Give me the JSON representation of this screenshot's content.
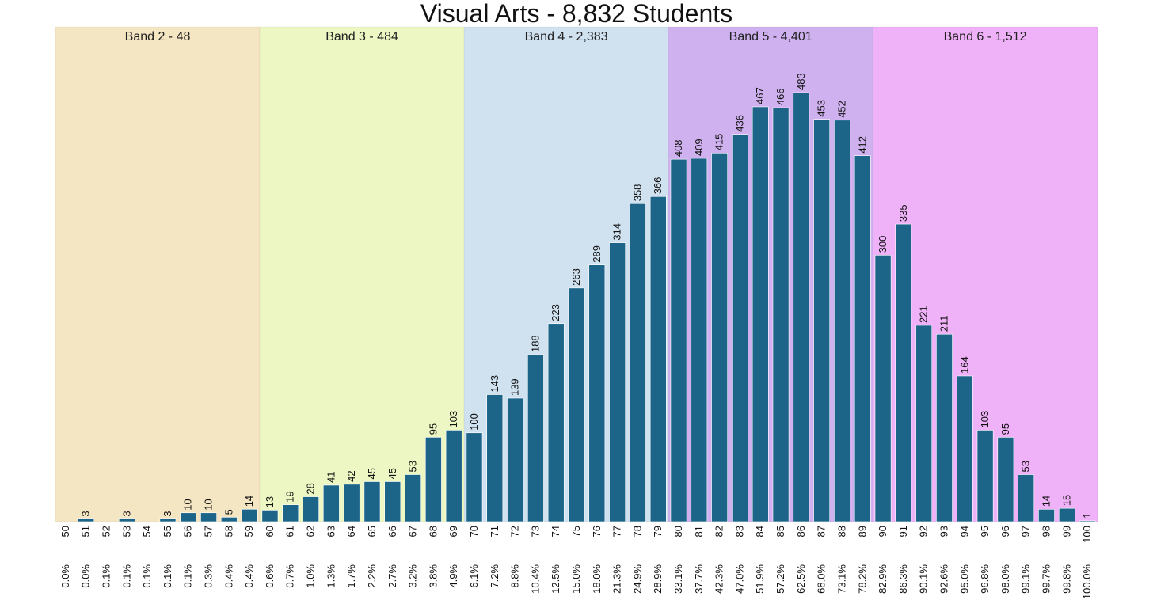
{
  "chart_data": {
    "type": "bar",
    "title": "Visual Arts - 8,832 Students",
    "categories": [
      "50",
      "51",
      "52",
      "53",
      "54",
      "55",
      "56",
      "57",
      "58",
      "59",
      "60",
      "61",
      "62",
      "63",
      "64",
      "65",
      "66",
      "67",
      "68",
      "69",
      "70",
      "71",
      "72",
      "73",
      "74",
      "75",
      "76",
      "77",
      "78",
      "79",
      "80",
      "81",
      "82",
      "83",
      "84",
      "85",
      "86",
      "87",
      "88",
      "89",
      "90",
      "91",
      "92",
      "93",
      "94",
      "95",
      "96",
      "97",
      "98",
      "99",
      "100"
    ],
    "values": [
      0,
      3,
      0,
      3,
      0,
      3,
      10,
      10,
      5,
      14,
      13,
      19,
      28,
      41,
      42,
      45,
      45,
      53,
      95,
      103,
      100,
      143,
      139,
      188,
      223,
      263,
      289,
      314,
      358,
      366,
      408,
      409,
      415,
      436,
      467,
      466,
      483,
      453,
      452,
      412,
      300,
      335,
      221,
      211,
      164,
      103,
      95,
      53,
      14,
      15,
      1
    ],
    "value_labels": [
      "",
      "3",
      "",
      "3",
      "",
      "3",
      "10",
      "10",
      "5",
      "14",
      "13",
      "19",
      "28",
      "41",
      "42",
      "45",
      "45",
      "53",
      "95",
      "103",
      "100",
      "143",
      "139",
      "188",
      "223",
      "263",
      "289",
      "314",
      "358",
      "366",
      "408",
      "409",
      "415",
      "436",
      "467",
      "466",
      "483",
      "453",
      "452",
      "412",
      "300",
      "335",
      "221",
      "211",
      "164",
      "103",
      "95",
      "53",
      "14",
      "15",
      "1"
    ],
    "cumulative_percent": [
      "0.0%",
      "0.0%",
      "0.1%",
      "0.1%",
      "0.1%",
      "0.1%",
      "0.1%",
      "0.3%",
      "0.4%",
      "0.4%",
      "0.6%",
      "0.7%",
      "1.0%",
      "1.3%",
      "1.7%",
      "2.2%",
      "2.7%",
      "3.2%",
      "3.8%",
      "4.9%",
      "6.1%",
      "7.2%",
      "8.8%",
      "10.4%",
      "12.5%",
      "15.0%",
      "18.0%",
      "21.3%",
      "24.9%",
      "28.9%",
      "33.1%",
      "37.7%",
      "42.3%",
      "47.0%",
      "51.9%",
      "57.2%",
      "62.5%",
      "68.0%",
      "73.1%",
      "78.2%",
      "82.9%",
      "86.3%",
      "90.1%",
      "92.6%",
      "95.0%",
      "96.8%",
      "98.0%",
      "99.1%",
      "99.7%",
      "99.8%",
      "100.0%"
    ],
    "bands": [
      {
        "label": "Band 2 - 48",
        "from": "50",
        "to": "59",
        "color": "#f5e6c3"
      },
      {
        "label": "Band 3 - 484",
        "from": "60",
        "to": "69",
        "color": "#edf7c3"
      },
      {
        "label": "Band 4 - 2,383",
        "from": "70",
        "to": "79",
        "color": "#d0e1f0"
      },
      {
        "label": "Band 5 - 4,401",
        "from": "80",
        "to": "89",
        "color": "#cfb1ef"
      },
      {
        "label": "Band 6 - 1,512",
        "from": "90",
        "to": "100",
        "color": "#efb1f7"
      }
    ],
    "bar_color": "#1c6589",
    "grid": false,
    "legend": "none"
  }
}
